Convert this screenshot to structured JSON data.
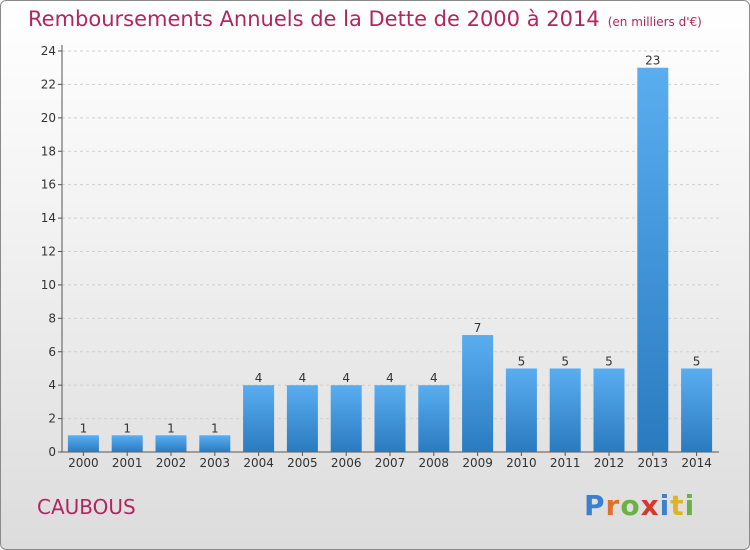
{
  "title": {
    "main": "Remboursements Annuels de la Dette de 2000 à 2014",
    "unit": "(en milliers d'€)"
  },
  "commune": "CAUBOUS",
  "logo": {
    "text": "Proxiti",
    "letters": [
      {
        "ch": "P",
        "color": "#3a7fd0"
      },
      {
        "ch": "r",
        "color": "#e0712a"
      },
      {
        "ch": "o",
        "color": "#6bb244"
      },
      {
        "ch": "x",
        "color": "#d33a2c"
      },
      {
        "ch": "i",
        "color": "#3a7fd0"
      },
      {
        "ch": "t",
        "color": "#e0b22a"
      },
      {
        "ch": "i",
        "color": "#6bb244"
      }
    ]
  },
  "colors": {
    "title": "#b0265e",
    "bar_top": "#5aaef0",
    "bar_bottom": "#2a7ac0",
    "axis_text": "#333333",
    "grid": "#cfcfcf"
  },
  "chart_data": {
    "type": "bar",
    "title": "Remboursements Annuels de la Dette de 2000 à 2014",
    "subtitle": "(en milliers d'€)",
    "categories": [
      "2000",
      "2001",
      "2002",
      "2003",
      "2004",
      "2005",
      "2006",
      "2007",
      "2008",
      "2009",
      "2010",
      "2011",
      "2012",
      "2013",
      "2014"
    ],
    "values": [
      1,
      1,
      1,
      1,
      4,
      4,
      4,
      4,
      4,
      7,
      5,
      5,
      5,
      23,
      5
    ],
    "ylim": [
      0,
      24
    ],
    "yticks": [
      0,
      2,
      4,
      6,
      8,
      10,
      12,
      14,
      16,
      18,
      20,
      22,
      24
    ],
    "grid": true,
    "data_labels": true
  }
}
